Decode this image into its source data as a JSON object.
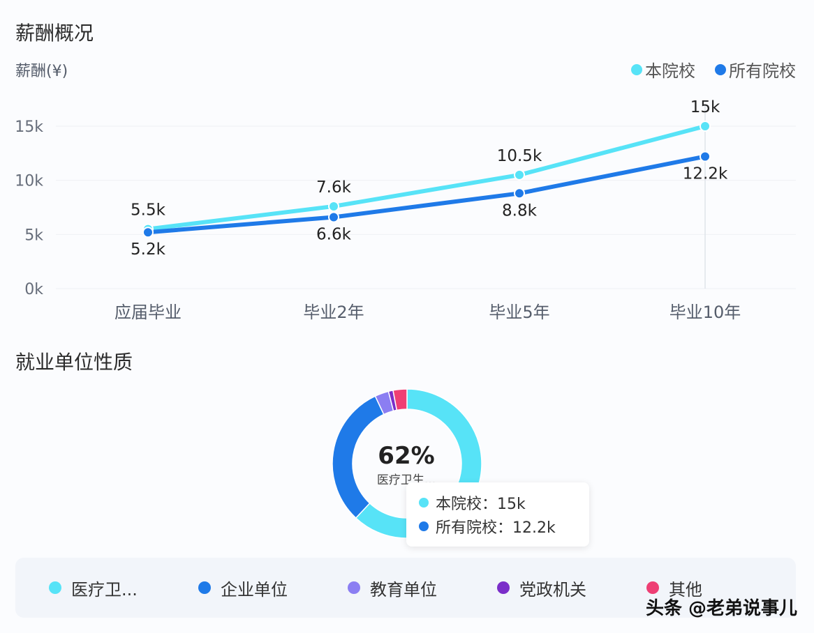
{
  "salary_section": {
    "title": "薪酬概况",
    "y_axis_label": "薪酬(¥)"
  },
  "chart_data": [
    {
      "type": "line",
      "title": "薪酬概况",
      "ylabel": "薪酬(¥)",
      "categories": [
        "应届毕业",
        "毕业2年",
        "毕业5年",
        "毕业10年"
      ],
      "yticks": [
        "0k",
        "5k",
        "10k",
        "15k"
      ],
      "ylim": [
        0,
        15
      ],
      "grid": true,
      "legend": "top-right",
      "series": [
        {
          "name": "本院校",
          "color": "#57e3f7",
          "values": [
            5.5,
            7.6,
            10.5,
            15
          ],
          "labels": [
            "5.5k",
            "7.6k",
            "10.5k",
            "15k"
          ]
        },
        {
          "name": "所有院校",
          "color": "#1f7ae8",
          "values": [
            5.2,
            6.6,
            8.8,
            12.2
          ],
          "labels": [
            "5.2k",
            "6.6k",
            "8.8k",
            "12.2k"
          ]
        }
      ]
    },
    {
      "type": "pie",
      "title": "就业单位性质",
      "center_value": "62%",
      "center_label": "医疗卫生...",
      "slices": [
        {
          "name": "医疗卫...",
          "value": 62,
          "color": "#57e3f7"
        },
        {
          "name": "企业单位",
          "value": 31,
          "color": "#1f7ae8"
        },
        {
          "name": "教育单位",
          "value": 3,
          "color": "#8b7ef2"
        },
        {
          "name": "党政机关",
          "value": 1,
          "color": "#7b2ec9"
        },
        {
          "name": "其他",
          "value": 3,
          "color": "#ee3f74"
        }
      ]
    }
  ],
  "tooltip": {
    "rows": [
      {
        "text": "本院校：15k",
        "color": "#57e3f7"
      },
      {
        "text": "所有院校：12.2k",
        "color": "#1f7ae8"
      }
    ]
  },
  "employment_section": {
    "title": "就业单位性质"
  },
  "watermark": "头条 @老弟说事儿"
}
